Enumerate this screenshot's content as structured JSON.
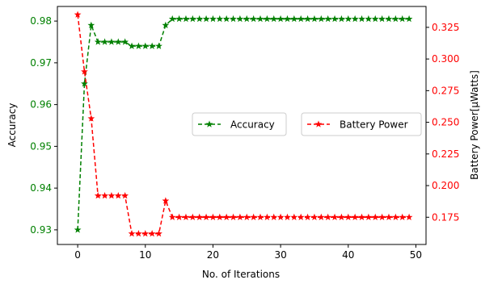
{
  "chart_data": {
    "type": "line",
    "xlabel": "No. of Iterations",
    "ylabel_left": "Accuracy",
    "ylabel_right": "Battery Power[µWatts]",
    "xlim": [
      -3,
      51.5
    ],
    "ylim_left": [
      0.9265,
      0.9835
    ],
    "ylim_right": [
      0.1535,
      0.3415
    ],
    "x_ticks": [
      0,
      10,
      20,
      30,
      40,
      50
    ],
    "y_ticks_left": [
      0.93,
      0.94,
      0.95,
      0.96,
      0.97,
      0.98
    ],
    "y_ticks_right": [
      0.175,
      0.2,
      0.225,
      0.25,
      0.275,
      0.3,
      0.325
    ],
    "x_tick_labels": [
      "0",
      "10",
      "20",
      "30",
      "40",
      "50"
    ],
    "y_tick_labels_left": [
      "0.93",
      "0.94",
      "0.95",
      "0.96",
      "0.97",
      "0.98"
    ],
    "y_tick_labels_right": [
      "0.175",
      "0.200",
      "0.225",
      "0.250",
      "0.275",
      "0.300",
      "0.325"
    ],
    "grid": false,
    "legend_position": "center-right",
    "left_axis_color": "#008000",
    "right_axis_color": "#ff0000",
    "series": [
      {
        "name": "Accuracy",
        "axis": "left",
        "color": "#008000",
        "linestyle": "dashed",
        "marker": "star",
        "x": [
          0,
          1,
          2,
          3,
          4,
          5,
          6,
          7,
          8,
          9,
          10,
          11,
          12,
          13,
          14,
          15,
          16,
          17,
          18,
          19,
          20,
          21,
          22,
          23,
          24,
          25,
          26,
          27,
          28,
          29,
          30,
          31,
          32,
          33,
          34,
          35,
          36,
          37,
          38,
          39,
          40,
          41,
          42,
          43,
          44,
          45,
          46,
          47,
          48,
          49
        ],
        "y": [
          0.93,
          0.965,
          0.979,
          0.975,
          0.975,
          0.975,
          0.975,
          0.975,
          0.974,
          0.974,
          0.974,
          0.974,
          0.974,
          0.979,
          0.9805,
          0.9805,
          0.9805,
          0.9805,
          0.9805,
          0.9805,
          0.9805,
          0.9805,
          0.9805,
          0.9805,
          0.9805,
          0.9805,
          0.9805,
          0.9805,
          0.9805,
          0.9805,
          0.9805,
          0.9805,
          0.9805,
          0.9805,
          0.9805,
          0.9805,
          0.9805,
          0.9805,
          0.9805,
          0.9805,
          0.9805,
          0.9805,
          0.9805,
          0.9805,
          0.9805,
          0.9805,
          0.9805,
          0.9805,
          0.9805,
          0.9805
        ]
      },
      {
        "name": "Battery Power",
        "axis": "right",
        "color": "#ff0000",
        "linestyle": "dashed",
        "marker": "star",
        "x": [
          0,
          1,
          2,
          3,
          4,
          5,
          6,
          7,
          8,
          9,
          10,
          11,
          12,
          13,
          14,
          15,
          16,
          17,
          18,
          19,
          20,
          21,
          22,
          23,
          24,
          25,
          26,
          27,
          28,
          29,
          30,
          31,
          32,
          33,
          34,
          35,
          36,
          37,
          38,
          39,
          40,
          41,
          42,
          43,
          44,
          45,
          46,
          47,
          48,
          49
        ],
        "y": [
          0.335,
          0.29,
          0.253,
          0.192,
          0.192,
          0.192,
          0.192,
          0.192,
          0.162,
          0.162,
          0.162,
          0.162,
          0.162,
          0.188,
          0.175,
          0.175,
          0.175,
          0.175,
          0.175,
          0.175,
          0.175,
          0.175,
          0.175,
          0.175,
          0.175,
          0.175,
          0.175,
          0.175,
          0.175,
          0.175,
          0.175,
          0.175,
          0.175,
          0.175,
          0.175,
          0.175,
          0.175,
          0.175,
          0.175,
          0.175,
          0.175,
          0.175,
          0.175,
          0.175,
          0.175,
          0.175,
          0.175,
          0.175,
          0.175,
          0.175
        ]
      }
    ]
  }
}
